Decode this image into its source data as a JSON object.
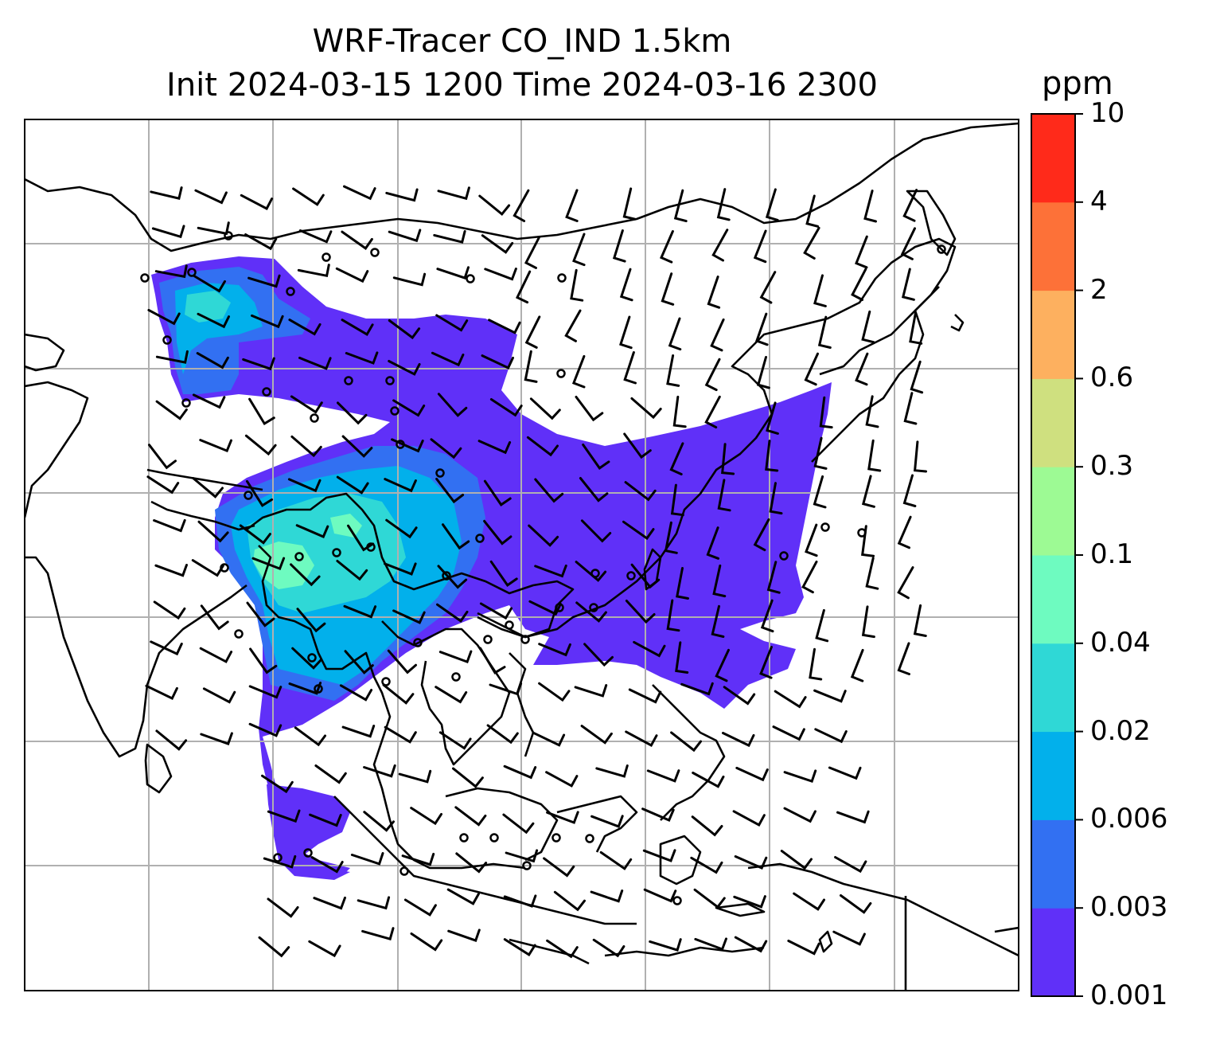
{
  "title": {
    "line1": "WRF-Tracer CO_IND 1.5km",
    "line2": "Init 2024-03-15 1200 Time 2024-03-16 2300"
  },
  "colorbar": {
    "unit": "ppm",
    "levels": [
      "0.001",
      "0.003",
      "0.006",
      "0.02",
      "0.04",
      "0.1",
      "0.3",
      "0.6",
      "2",
      "4",
      "10"
    ],
    "colors": [
      "#6030f8",
      "#3270f2",
      "#02b0eb",
      "#2fd8d6",
      "#6efbc0",
      "#9dfa94",
      "#cfe07f",
      "#fdb05f",
      "#fd7138",
      "#ff2a1a"
    ]
  },
  "map": {
    "gridlines": true,
    "frame_color": "#000000",
    "grid_color": "#b0b0b0",
    "plume_colors": {
      "c0001": "#6030f8",
      "c0003": "#3270f2",
      "c0006": "#02b0eb",
      "c002": "#2fd8d6",
      "c004": "#6efbc0"
    }
  }
}
